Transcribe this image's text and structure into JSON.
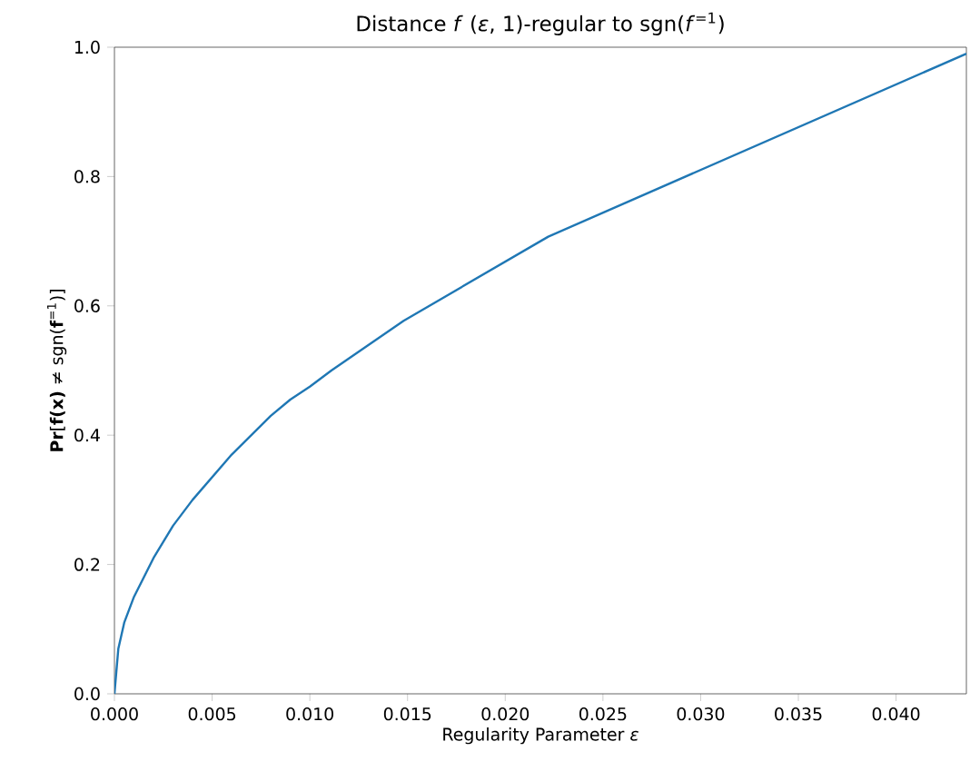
{
  "chart_data": {
    "type": "line",
    "title": "Distance *f* (*ε*, 1)-regular to sgn(*f*$^{=1}$)",
    "xlabel": "Regularity Parameter *ε*",
    "ylabel": "**Pr**[**f(x)** ≠ sgn(**f**$^{=1}$)]",
    "x": [
      0,
      0.0002,
      0.0005,
      0.001,
      0.002,
      0.003,
      0.004,
      0.005,
      0.006,
      0.007,
      0.008,
      0.009,
      0.01,
      0.0111,
      0.0148,
      0.0222,
      0.0436
    ],
    "series": [
      {
        "color": "#1f77b4",
        "values": [
          0,
          0.07,
          0.11,
          0.15,
          0.21,
          0.26,
          0.3,
          0.335,
          0.37,
          0.4,
          0.43,
          0.455,
          0.475,
          0.5,
          0.577,
          0.707,
          0.99
        ]
      }
    ],
    "xlim": [
      0,
      0.0436
    ],
    "ylim": [
      0,
      1.0
    ],
    "xticks": [
      {
        "value": 0,
        "label": "0.000"
      },
      {
        "value": 0.005,
        "label": "0.005"
      },
      {
        "value": 0.01,
        "label": "0.010"
      },
      {
        "value": 0.015,
        "label": "0.015"
      },
      {
        "value": 0.02,
        "label": "0.020"
      },
      {
        "value": 0.025,
        "label": "0.025"
      },
      {
        "value": 0.03,
        "label": "0.030"
      },
      {
        "value": 0.035,
        "label": "0.035"
      },
      {
        "value": 0.04,
        "label": "0.040"
      }
    ],
    "yticks": [
      {
        "value": 0,
        "label": "0.0"
      },
      {
        "value": 0.2,
        "label": "0.2"
      },
      {
        "value": 0.4,
        "label": "0.4"
      },
      {
        "value": 0.6,
        "label": "0.6"
      },
      {
        "value": 0.8,
        "label": "0.8"
      },
      {
        "value": 1.0,
        "label": "1.0"
      }
    ],
    "marker": "none",
    "line_style": "solid"
  }
}
